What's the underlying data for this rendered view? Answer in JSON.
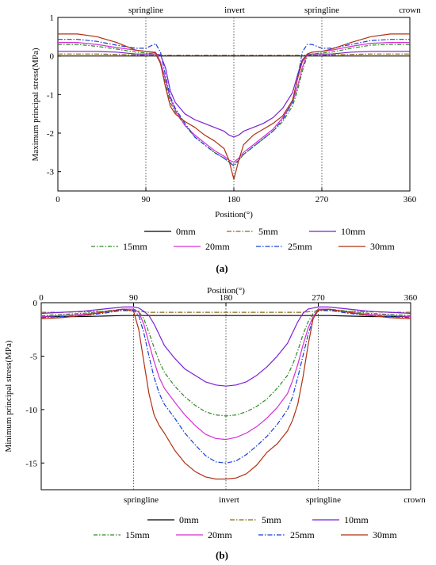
{
  "chart_data": [
    {
      "type": "line",
      "panel_label": "(a)",
      "xlabel": "Position(°)",
      "ylabel": "Maximum principal stress(MPa)",
      "xlim": [
        0,
        360
      ],
      "ylim": [
        -3.5,
        1
      ],
      "x_ticks": [
        0,
        90,
        180,
        270,
        360
      ],
      "x_tick_labels": [
        "0",
        "90",
        "180",
        "270",
        "360"
      ],
      "y_ticks": [
        1,
        0,
        -1,
        -2,
        -3
      ],
      "y_tick_labels": [
        "1",
        "0",
        "-1",
        "-2",
        "-3"
      ],
      "grid": false,
      "annotations": [
        {
          "text": "springline",
          "x": 90
        },
        {
          "text": "invert",
          "x": 180
        },
        {
          "text": "springline",
          "x": 270
        },
        {
          "text": "crown",
          "x": 360
        }
      ],
      "x": [
        0,
        20,
        40,
        60,
        80,
        90,
        100,
        105,
        110,
        115,
        120,
        130,
        140,
        150,
        160,
        170,
        175,
        180,
        185,
        190,
        200,
        210,
        220,
        230,
        240,
        245,
        250,
        255,
        260,
        270,
        280,
        300,
        320,
        340,
        360
      ],
      "series": [
        {
          "name": "0mm",
          "color": "#000000",
          "dash": "",
          "values": [
            0.0,
            0.0,
            0.0,
            0.0,
            0.0,
            0.0,
            0.0,
            0.0,
            0.0,
            0.0,
            0.0,
            0.0,
            0.0,
            0.0,
            0.0,
            0.0,
            0.0,
            0.0,
            0.0,
            0.0,
            0.0,
            0.0,
            0.0,
            0.0,
            0.0,
            0.0,
            0.0,
            0.0,
            0.0,
            0.0,
            0.0,
            0.0,
            0.0,
            0.0,
            0.0
          ]
        },
        {
          "name": "5mm",
          "color": "#8b6914",
          "dash": "6,2,1.5,2",
          "values": [
            0.05,
            0.05,
            0.05,
            0.04,
            0.03,
            0.02,
            0.02,
            0.02,
            0.02,
            0.02,
            0.02,
            0.02,
            0.02,
            0.02,
            0.02,
            0.02,
            0.02,
            0.02,
            0.02,
            0.02,
            0.02,
            0.02,
            0.02,
            0.02,
            0.02,
            0.02,
            0.02,
            0.02,
            0.02,
            0.02,
            0.03,
            0.04,
            0.05,
            0.05,
            0.05
          ]
        },
        {
          "name": "10mm",
          "color": "#7b1fd6",
          "dash": "",
          "values": [
            0.12,
            0.12,
            0.12,
            0.1,
            0.05,
            0.05,
            0.05,
            0.03,
            -0.3,
            -0.9,
            -1.2,
            -1.5,
            -1.65,
            -1.75,
            -1.85,
            -1.95,
            -2.05,
            -2.1,
            -2.05,
            -1.95,
            -1.85,
            -1.75,
            -1.6,
            -1.35,
            -0.95,
            -0.5,
            -0.1,
            0.03,
            0.05,
            0.05,
            0.05,
            0.1,
            0.12,
            0.12,
            0.12
          ]
        },
        {
          "name": "15mm",
          "color": "#2e8b22",
          "dash": "5,2,1.5,2",
          "values": [
            0.3,
            0.3,
            0.25,
            0.18,
            0.1,
            0.08,
            0.05,
            -0.2,
            -0.7,
            -1.2,
            -1.45,
            -1.8,
            -2.1,
            -2.3,
            -2.5,
            -2.65,
            -2.75,
            -2.8,
            -2.7,
            -2.55,
            -2.35,
            -2.15,
            -1.95,
            -1.7,
            -1.3,
            -0.9,
            -0.4,
            0.0,
            0.05,
            0.08,
            0.1,
            0.2,
            0.28,
            0.3,
            0.3
          ]
        },
        {
          "name": "20mm",
          "color": "#d62fd6",
          "dash": "",
          "values": [
            0.35,
            0.35,
            0.3,
            0.22,
            0.15,
            0.12,
            0.1,
            -0.15,
            -0.6,
            -1.1,
            -1.4,
            -1.8,
            -2.05,
            -2.25,
            -2.45,
            -2.6,
            -2.7,
            -2.75,
            -2.65,
            -2.5,
            -2.3,
            -2.1,
            -1.9,
            -1.6,
            -1.2,
            -0.8,
            -0.3,
            0.05,
            0.1,
            0.12,
            0.15,
            0.25,
            0.33,
            0.35,
            0.35
          ]
        },
        {
          "name": "25mm",
          "color": "#1a3fd6",
          "dash": "6,2,1.5,2",
          "values": [
            0.43,
            0.43,
            0.38,
            0.28,
            0.2,
            0.2,
            0.32,
            0.1,
            -0.5,
            -1.05,
            -1.35,
            -1.75,
            -2.1,
            -2.3,
            -2.5,
            -2.65,
            -2.75,
            -2.85,
            -2.7,
            -2.55,
            -2.35,
            -2.15,
            -1.95,
            -1.65,
            -1.2,
            -0.6,
            0.1,
            0.3,
            0.3,
            0.2,
            0.2,
            0.3,
            0.4,
            0.43,
            0.43
          ]
        },
        {
          "name": "30mm",
          "color": "#b03010",
          "dash": "",
          "values": [
            0.57,
            0.57,
            0.5,
            0.35,
            0.15,
            0.12,
            0.08,
            -0.2,
            -0.8,
            -1.3,
            -1.5,
            -1.7,
            -1.85,
            -2.05,
            -2.2,
            -2.4,
            -2.7,
            -3.2,
            -2.7,
            -2.3,
            -2.05,
            -1.9,
            -1.75,
            -1.55,
            -1.15,
            -0.6,
            -0.15,
            0.05,
            0.1,
            0.12,
            0.18,
            0.35,
            0.5,
            0.57,
            0.57
          ]
        }
      ]
    },
    {
      "type": "line",
      "panel_label": "(b)",
      "xlabel": "Position(°)",
      "ylabel": "Minimum principal stress(MPa)",
      "xlim": [
        0,
        360
      ],
      "ylim": [
        -17.5,
        0
      ],
      "x_ticks": [
        0,
        90,
        180,
        270,
        360
      ],
      "x_tick_labels": [
        "0",
        "90",
        "180",
        "270",
        "360"
      ],
      "y_ticks": [
        0,
        -5,
        -10,
        -15
      ],
      "y_tick_labels": [
        "0",
        "-5",
        "-10",
        "-15"
      ],
      "grid": false,
      "annotations": [
        {
          "text": "springline",
          "x": 90
        },
        {
          "text": "invert",
          "x": 180
        },
        {
          "text": "springline",
          "x": 270
        },
        {
          "text": "crown",
          "x": 360
        }
      ],
      "x": [
        0,
        20,
        40,
        60,
        80,
        90,
        95,
        100,
        105,
        110,
        115,
        120,
        130,
        140,
        150,
        160,
        170,
        180,
        190,
        200,
        210,
        220,
        230,
        240,
        245,
        250,
        255,
        260,
        265,
        270,
        280,
        300,
        320,
        340,
        360
      ],
      "series": [
        {
          "name": "0mm",
          "color": "#000000",
          "dash": "",
          "values": [
            -1.3,
            -1.3,
            -1.3,
            -1.25,
            -1.2,
            -1.2,
            -1.2,
            -1.2,
            -1.2,
            -1.2,
            -1.2,
            -1.2,
            -1.2,
            -1.2,
            -1.2,
            -1.2,
            -1.2,
            -1.2,
            -1.2,
            -1.2,
            -1.2,
            -1.2,
            -1.2,
            -1.2,
            -1.2,
            -1.2,
            -1.2,
            -1.2,
            -1.2,
            -1.2,
            -1.2,
            -1.25,
            -1.3,
            -1.3,
            -1.3
          ]
        },
        {
          "name": "5mm",
          "color": "#8b6914",
          "dash": "6,2,1.5,2",
          "values": [
            -0.9,
            -0.9,
            -0.85,
            -0.8,
            -0.75,
            -0.75,
            -0.8,
            -0.85,
            -0.9,
            -0.9,
            -0.9,
            -0.9,
            -0.9,
            -0.9,
            -0.9,
            -0.9,
            -0.9,
            -0.9,
            -0.9,
            -0.9,
            -0.9,
            -0.9,
            -0.9,
            -0.9,
            -0.9,
            -0.9,
            -0.9,
            -0.85,
            -0.8,
            -0.75,
            -0.75,
            -0.8,
            -0.85,
            -0.9,
            -0.9
          ]
        },
        {
          "name": "10mm",
          "color": "#7b1fd6",
          "dash": "",
          "values": [
            -1.0,
            -0.9,
            -0.8,
            -0.6,
            -0.4,
            -0.4,
            -0.5,
            -0.8,
            -1.2,
            -2.0,
            -3.0,
            -4.0,
            -5.2,
            -6.2,
            -6.8,
            -7.4,
            -7.7,
            -7.8,
            -7.7,
            -7.4,
            -6.8,
            -6.0,
            -5.0,
            -3.8,
            -2.8,
            -1.8,
            -1.0,
            -0.6,
            -0.5,
            -0.4,
            -0.4,
            -0.6,
            -0.8,
            -0.9,
            -1.0
          ]
        },
        {
          "name": "15mm",
          "color": "#2e8b22",
          "dash": "5,2,1.5,2",
          "values": [
            -1.2,
            -1.1,
            -1.0,
            -0.8,
            -0.6,
            -0.6,
            -0.8,
            -1.5,
            -2.8,
            -4.2,
            -5.5,
            -6.5,
            -7.8,
            -8.8,
            -9.6,
            -10.2,
            -10.5,
            -10.6,
            -10.5,
            -10.2,
            -9.7,
            -9.0,
            -8.0,
            -6.8,
            -5.8,
            -4.5,
            -3.0,
            -1.8,
            -1.0,
            -0.6,
            -0.6,
            -0.8,
            -1.0,
            -1.1,
            -1.2
          ]
        },
        {
          "name": "20mm",
          "color": "#d62fd6",
          "dash": "",
          "values": [
            -1.3,
            -1.2,
            -1.1,
            -0.9,
            -0.6,
            -0.6,
            -0.9,
            -2.0,
            -3.8,
            -5.5,
            -7.0,
            -8.0,
            -9.3,
            -10.5,
            -11.5,
            -12.3,
            -12.7,
            -12.8,
            -12.6,
            -12.2,
            -11.6,
            -10.8,
            -9.8,
            -8.5,
            -7.3,
            -5.8,
            -4.0,
            -2.4,
            -1.3,
            -0.6,
            -0.6,
            -0.9,
            -1.1,
            -1.2,
            -1.3
          ]
        },
        {
          "name": "25mm",
          "color": "#1a3fd6",
          "dash": "6,2,1.5,2",
          "values": [
            -1.4,
            -1.3,
            -1.2,
            -1.0,
            -0.7,
            -0.7,
            -1.2,
            -2.8,
            -5.0,
            -7.0,
            -8.5,
            -9.5,
            -10.8,
            -12.2,
            -13.3,
            -14.3,
            -14.9,
            -15.0,
            -14.8,
            -14.2,
            -13.4,
            -12.5,
            -11.4,
            -10.0,
            -8.8,
            -7.0,
            -5.0,
            -3.0,
            -1.5,
            -0.7,
            -0.7,
            -1.0,
            -1.2,
            -1.3,
            -1.4
          ]
        },
        {
          "name": "30mm",
          "color": "#b03010",
          "dash": "",
          "values": [
            -1.5,
            -1.4,
            -1.2,
            -0.9,
            -0.6,
            -0.8,
            -2.5,
            -5.5,
            -8.5,
            -10.5,
            -11.5,
            -12.2,
            -13.8,
            -15.0,
            -15.8,
            -16.3,
            -16.5,
            -16.5,
            -16.4,
            -16.0,
            -15.2,
            -14.0,
            -13.2,
            -12.0,
            -11.0,
            -9.5,
            -7.0,
            -4.0,
            -1.5,
            -0.7,
            -0.6,
            -0.9,
            -1.2,
            -1.4,
            -1.5
          ]
        }
      ]
    }
  ]
}
